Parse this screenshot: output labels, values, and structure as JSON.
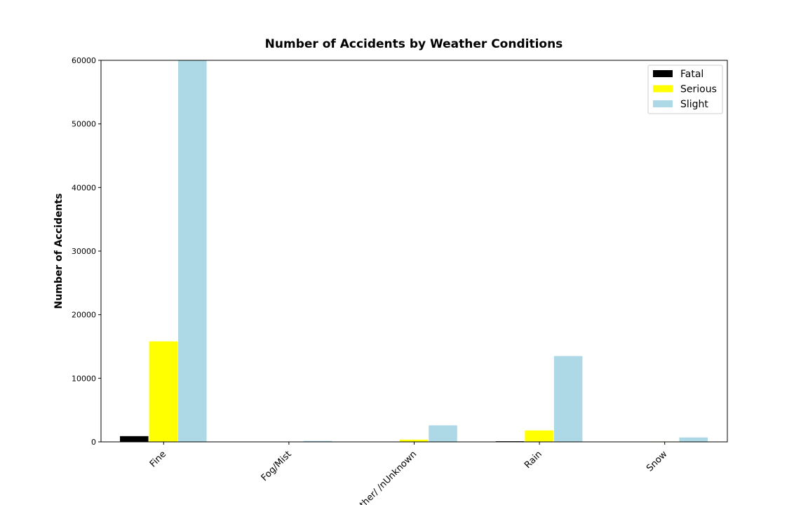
{
  "chart_data": {
    "type": "bar",
    "title": "Number of Accidents by Weather Conditions",
    "xlabel": "",
    "ylabel": "Number of Accidents",
    "categories": [
      "Fine",
      "Fog/Mist",
      "Other/ /nUnknown",
      "Rain",
      "Snow"
    ],
    "series": [
      {
        "name": "Fatal",
        "color": "#000000",
        "values": [
          900,
          10,
          20,
          100,
          5
        ]
      },
      {
        "name": "Serious",
        "color": "#ffff00",
        "values": [
          15800,
          50,
          350,
          1800,
          60
        ]
      },
      {
        "name": "Slight",
        "color": "#add8e6",
        "values": [
          60000,
          150,
          2600,
          13500,
          700
        ]
      }
    ],
    "ylim": [
      0,
      60000
    ],
    "yticks": [
      "0",
      "10000",
      "20000",
      "30000",
      "40000",
      "50000",
      "60000"
    ],
    "grid": false,
    "legend_position": "top-right"
  }
}
